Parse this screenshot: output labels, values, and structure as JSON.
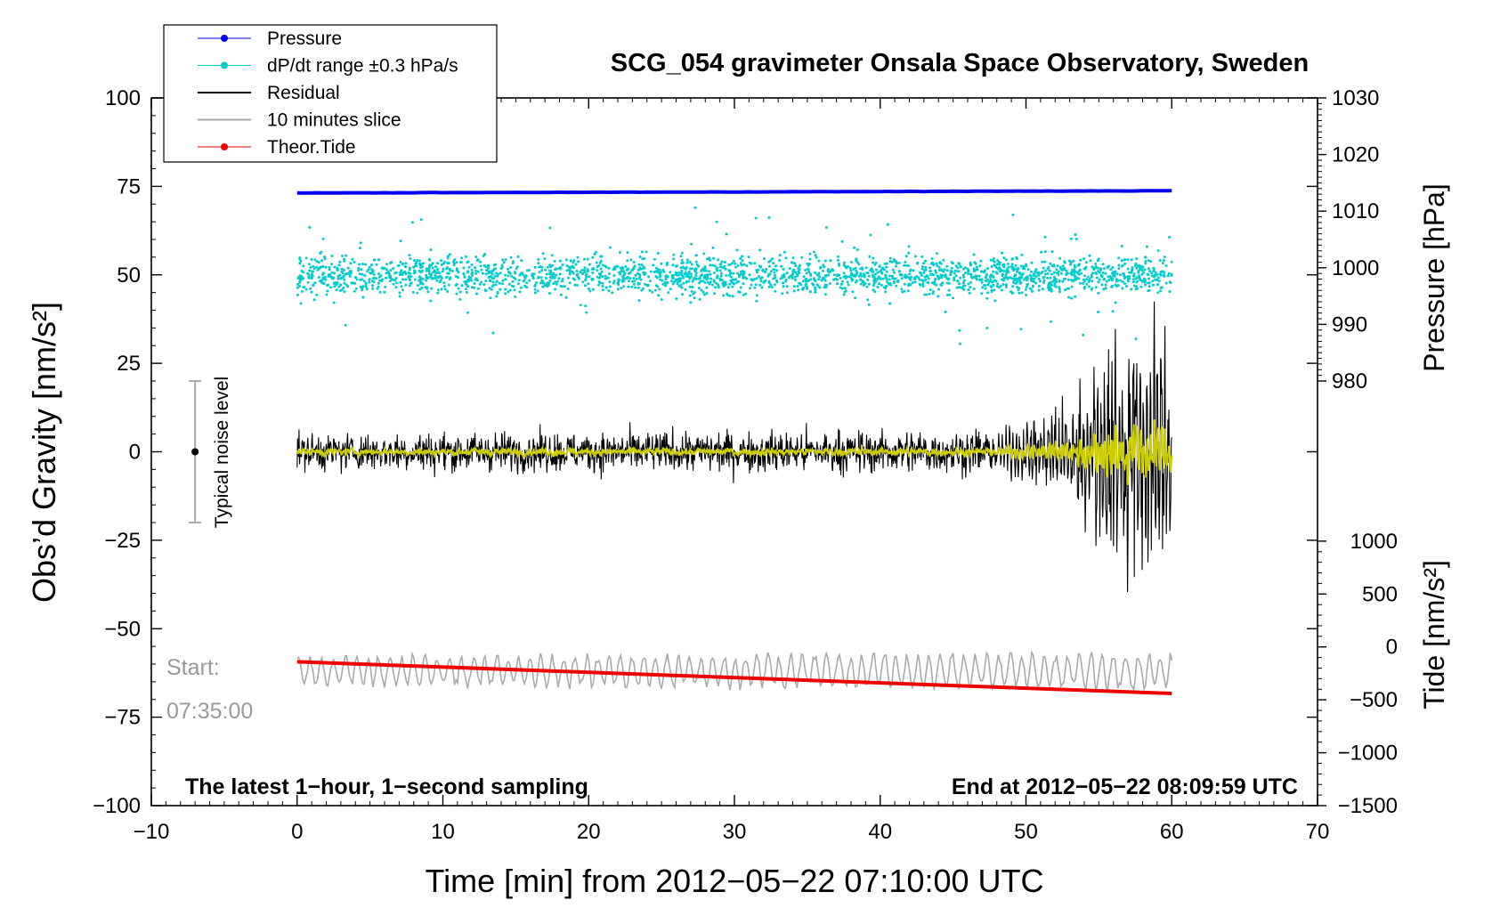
{
  "chart_data": {
    "type": "line",
    "title": "SCG_054 gravimeter Onsala Space Observatory, Sweden",
    "xlabel": "Time [min] from 2012−05−22 07:10:00 UTC",
    "ylabel_left": "Obs’d Gravity [nm/s²]",
    "ylabel_pressure": "Pressure [hPa]",
    "ylabel_tide": "Tide [nm/s²]",
    "xlim": [
      -10,
      70
    ],
    "ylim": [
      -100,
      100
    ],
    "pressure_range": [
      980,
      1030
    ],
    "tide_range": [
      -1500,
      1000
    ],
    "x_ticks": [
      "−10",
      "0",
      "10",
      "20",
      "30",
      "40",
      "50",
      "60",
      "70"
    ],
    "x_tick_values": [
      -10,
      0,
      10,
      20,
      30,
      40,
      50,
      60,
      70
    ],
    "y_ticks": [
      "100",
      "75",
      "50",
      "25",
      "0",
      "−25",
      "−50",
      "−75",
      "−100"
    ],
    "y_tick_values": [
      100,
      75,
      50,
      25,
      0,
      -25,
      -50,
      -75,
      -100
    ],
    "pressure_ticks": [
      "1030",
      "1020",
      "1010",
      "1000",
      "990",
      "980"
    ],
    "pressure_tick_values": [
      1030,
      1020,
      1010,
      1000,
      990,
      980
    ],
    "tide_ticks": [
      "1000",
      "500",
      "0",
      "−500",
      "−1000",
      "−1500"
    ],
    "tide_tick_values": [
      1000,
      500,
      0,
      -500,
      -1000,
      -1500
    ],
    "legend": [
      {
        "label": "Pressure",
        "color": "#0000ee",
        "marker": "dot"
      },
      {
        "label": "dP/dt range ±0.3 hPa/s",
        "color": "#00cccc",
        "marker": "dot"
      },
      {
        "label": "Residual",
        "color": "#000000",
        "marker": "line"
      },
      {
        "label": "10 minutes slice",
        "color": "#aaaaaa",
        "marker": "line"
      },
      {
        "label": "Theor.Tide",
        "color": "#ee0000",
        "marker": "dot"
      }
    ],
    "series": [
      {
        "name": "Pressure",
        "axis": "pressure_hpa",
        "x": [
          0,
          60
        ],
        "values": [
          1013.2,
          1013.6
        ]
      },
      {
        "name": "dP/dt range",
        "axis": "gravity_offset",
        "x": [
          0,
          60
        ],
        "values": [
          50,
          50
        ],
        "spread": [
          -6,
          6
        ]
      },
      {
        "name": "Residual",
        "axis": "gravity",
        "x": [
          0,
          48,
          53,
          57,
          60
        ],
        "values": [
          0,
          0,
          0,
          0,
          0
        ],
        "amplitude": [
          2.5,
          3,
          10,
          30,
          20
        ]
      },
      {
        "name": "10 minutes slice",
        "axis": "gravity",
        "x": [
          0,
          60
        ],
        "values": [
          -62,
          -62
        ],
        "amplitude": [
          4,
          5
        ]
      },
      {
        "name": "Theor.Tide",
        "axis": "tide",
        "x": [
          0,
          60
        ],
        "values": [
          -140,
          -440
        ]
      }
    ],
    "noise_marker": {
      "x": -7,
      "center": 0,
      "range": [
        -20,
        20
      ],
      "label": "Typical noise level"
    },
    "annotations": {
      "start_label": "Start:",
      "start_time": "07:35:00",
      "bottom_left": "The latest 1−hour, 1−second sampling",
      "bottom_right": "End at 2012−05−22 08:09:59 UTC"
    }
  },
  "colors": {
    "pressure": "#0000ee",
    "dpdt": "#00cccc",
    "residual": "#000000",
    "filtered": "#cccc00",
    "slice": "#aaaaaa",
    "tide": "#ee0000",
    "noise_bar": "#aaaaaa"
  }
}
